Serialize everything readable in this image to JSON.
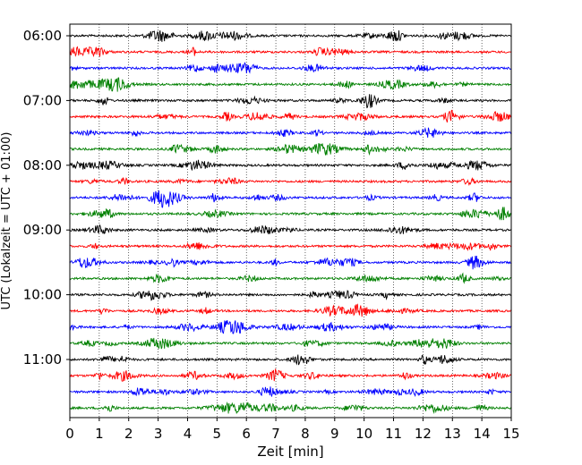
{
  "chart_data": {
    "type": "line",
    "title": "",
    "xlabel": "Zeit  [min]",
    "ylabel": "UTC (Lokalzeit = UTC + 01:00)",
    "xlim": [
      0,
      15
    ],
    "x_ticks": [
      "0",
      "1",
      "2",
      "3",
      "4",
      "5",
      "6",
      "7",
      "8",
      "9",
      "10",
      "11",
      "12",
      "13",
      "14",
      "15"
    ],
    "y_ticks": [
      "06:00",
      "07:00",
      "08:00",
      "09:00",
      "10:00",
      "11:00"
    ],
    "traces_per_hour": 4,
    "trace_interval_min": 15,
    "trace_start_times": [
      "06:00",
      "06:15",
      "06:30",
      "06:45",
      "07:00",
      "07:15",
      "07:30",
      "07:45",
      "08:00",
      "08:15",
      "08:30",
      "08:45",
      "09:00",
      "09:15",
      "09:30",
      "09:45",
      "10:00",
      "10:15",
      "10:30",
      "10:45",
      "11:00",
      "11:15",
      "11:30",
      "11:45"
    ],
    "colors": [
      "#000000",
      "#ff0000",
      "#0000ff",
      "#008000"
    ],
    "grid": "vertical dotted lines at each minute"
  }
}
